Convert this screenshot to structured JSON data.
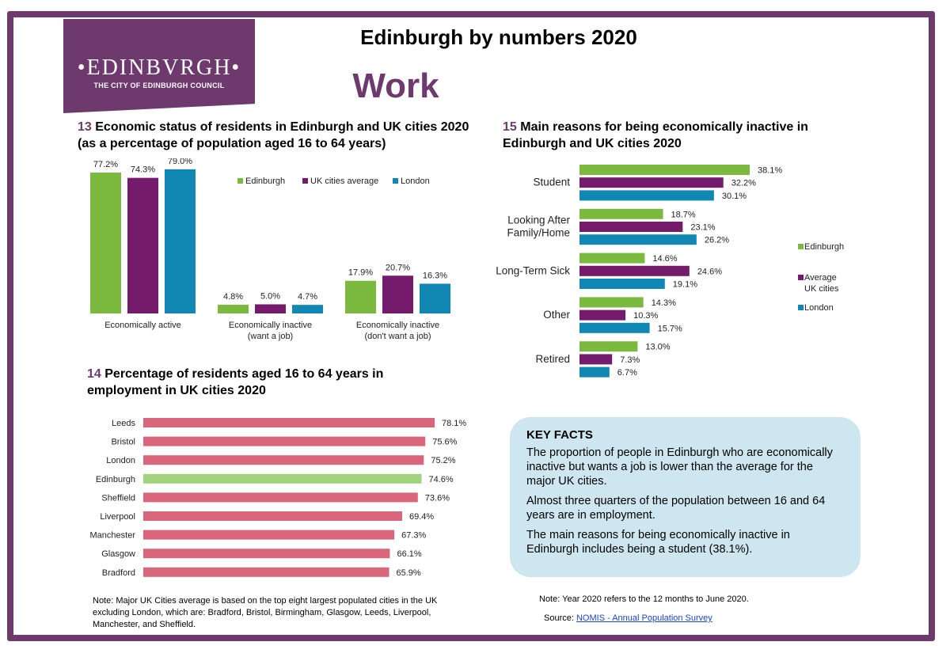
{
  "logo": {
    "main": "•EDINBVRGH•",
    "sub": "THE CITY OF EDINBURGH COUNCIL"
  },
  "header": {
    "title": "Edinburgh by numbers 2020",
    "subtitle": "Work"
  },
  "colors": {
    "edinburgh": "#7cba3f",
    "uk": "#741b6b",
    "london": "#1188b4",
    "pink": "#d9667b",
    "edinburgh_hl": "#a3d27f",
    "purple": "#6e3a6e"
  },
  "chart_data": [
    {
      "id": "13",
      "type": "bar",
      "title_num": "13",
      "title": "Economic status of residents in Edinburgh and UK cities 2020 (as a percentage of population aged 16 to 64 years)",
      "categories": [
        "Economically active",
        "Economically inactive\n(want a job)",
        "Economically inactive\n(don't want a job)"
      ],
      "series": [
        {
          "name": "Edinburgh",
          "values": [
            77.2,
            4.8,
            17.9
          ],
          "labels": [
            "77.2%",
            "4.8%",
            "17.9%"
          ]
        },
        {
          "name": "UK cities average",
          "values": [
            74.3,
            5.0,
            20.7
          ],
          "labels": [
            "74.3%",
            "5.0%",
            "20.7%"
          ]
        },
        {
          "name": "London",
          "values": [
            79.0,
            4.7,
            16.3
          ],
          "labels": [
            "79.0%",
            "4.7%",
            "16.3%"
          ]
        }
      ],
      "ylim": [
        0,
        85
      ],
      "legend": "top-right"
    },
    {
      "id": "14",
      "type": "bar",
      "orientation": "horizontal",
      "title_num": "14",
      "title": "Percentage of residents aged 16 to 64 years in employment in UK cities 2020",
      "categories": [
        "Leeds",
        "Bristol",
        "London",
        "Edinburgh",
        "Sheffield",
        "Liverpool",
        "Manchester",
        "Glasgow",
        "Bradford"
      ],
      "values": [
        78.1,
        75.6,
        75.2,
        74.6,
        73.6,
        69.4,
        67.3,
        66.1,
        65.9
      ],
      "labels": [
        "78.1%",
        "75.6%",
        "75.2%",
        "74.6%",
        "73.6%",
        "69.4%",
        "67.3%",
        "66.1%",
        "65.9%"
      ],
      "highlight": "Edinburgh",
      "xlim": [
        0,
        78.1
      ]
    },
    {
      "id": "15",
      "type": "bar",
      "orientation": "horizontal",
      "title_num": "15",
      "title": "Main reasons for being economically inactive in Edinburgh and UK cities 2020",
      "categories": [
        "Student",
        "Looking After\nFamily/Home",
        "Long-Term Sick",
        "Other",
        "Retired"
      ],
      "series": [
        {
          "name": "Edinburgh",
          "values": [
            38.1,
            18.7,
            14.6,
            14.3,
            13.0
          ],
          "labels": [
            "38.1%",
            "18.7%",
            "14.6%",
            "14.3%",
            "13.0%"
          ]
        },
        {
          "name": "Average\nUK cities",
          "values": [
            32.2,
            23.1,
            24.6,
            10.3,
            7.3
          ],
          "labels": [
            "32.2%",
            "23.1%",
            "24.6%",
            "10.3%",
            "7.3%"
          ]
        },
        {
          "name": "London",
          "values": [
            30.1,
            26.2,
            19.1,
            15.7,
            6.7
          ],
          "labels": [
            "30.1%",
            "26.2%",
            "19.1%",
            "15.7%",
            "6.7%"
          ]
        }
      ],
      "xlim": [
        0,
        38.1
      ],
      "legend": "right"
    }
  ],
  "key_facts": {
    "title": "KEY FACTS",
    "items": [
      "The proportion of people in Edinburgh who are economically inactive but wants a job is lower than the average for the major UK cities.",
      "Almost three quarters of the population between 16 and 64 years are in employment.",
      "The main reasons for being economically inactive in Edinburgh includes being a student (38.1%)."
    ]
  },
  "notes": {
    "cities": "Note: Major UK Cities average is based on the top eight largest populated cities in the UK excluding London, which are: Bradford, Bristol, Birmingham, Glasgow, Leeds, Liverpool, Manchester, and Sheffield.",
    "year": "Note: Year 2020 refers to the 12 months to June 2020.",
    "source_label": "Source:",
    "source_link": "NOMIS - Annual Population Survey"
  }
}
